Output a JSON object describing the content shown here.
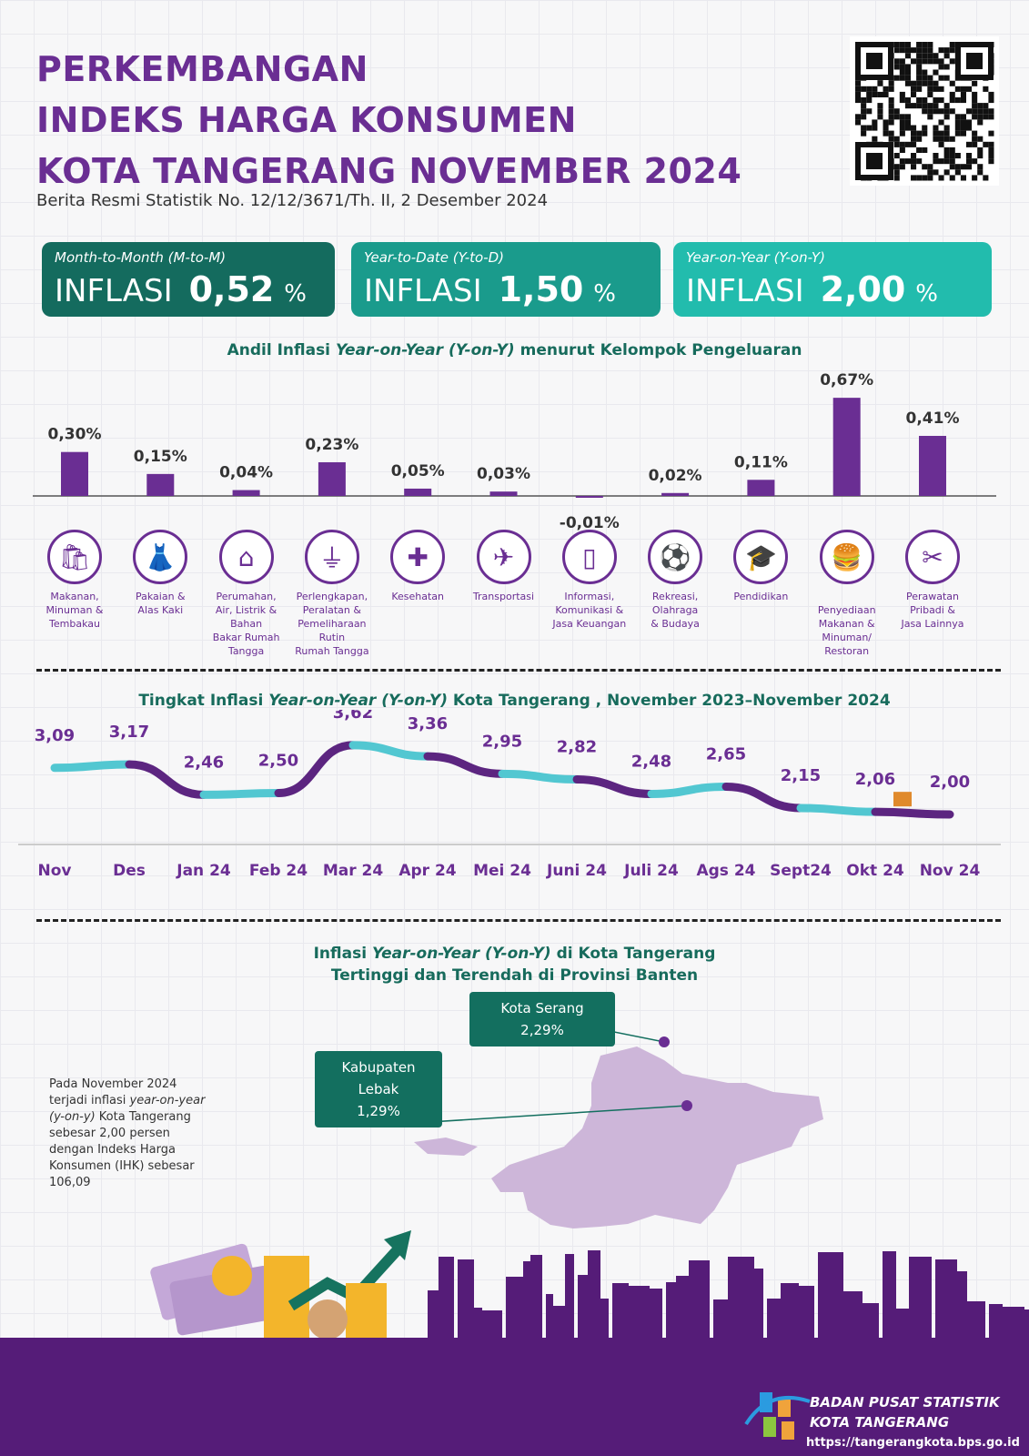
{
  "header": {
    "title_lines": [
      "PERKEMBANGAN",
      "INDEKS HARGA KONSUMEN",
      "KOTA TANGERANG NOVEMBER 2024"
    ],
    "subtitle": "Berita Resmi Statistik No. 12/12/3671/Th. II, 2 Desember 2024"
  },
  "cards": [
    {
      "kind": "Month-to-Month (M-to-M)",
      "label": "INFLASI",
      "value": "0,52",
      "unit": "%",
      "color": "#146b5e"
    },
    {
      "kind": "Year-to-Date (Y-to-D)",
      "label": "INFLASI",
      "value": "1,50",
      "unit": "%",
      "color": "#1a9b8c"
    },
    {
      "kind": "Year-on-Year (Y-on-Y)",
      "label": "INFLASI",
      "value": "2,00",
      "unit": "%",
      "color": "#22bcad"
    }
  ],
  "colors": {
    "purple": "#6a2e93",
    "teal": "#52c7d1",
    "dark_green": "#136f5f",
    "map": "#cdb6d9"
  },
  "chart_data": [
    {
      "type": "bar",
      "title_pre": "Andil Inflasi ",
      "title_em": "Year-on-Year (Y-on-Y)",
      "title_post": " menurut Kelompok Pengeluaran",
      "categories": [
        "Makanan, Minuman & Tembakau",
        "Pakaian & Alas Kaki",
        "Perumahan, Air, Listrik & Bahan Bakar Rumah Tangga",
        "Perlengkapan, Peralatan & Pemeliharaan Rutin Rumah Tangga",
        "Kesehatan",
        "Transportasi",
        "Informasi, Komunikasi & Jasa Keuangan",
        "Rekreasi, Olahraga & Budaya",
        "Pendidikan",
        "Penyediaan Makanan & Minuman/ Restoran",
        "Perawatan Pribadi & Jasa Lainnya"
      ],
      "category_lines": [
        [
          "Makanan,",
          "Minuman &",
          "Tembakau"
        ],
        [
          "Pakaian &",
          "Alas Kaki"
        ],
        [
          "Perumahan,",
          "Air, Listrik &",
          "Bahan",
          "Bakar Rumah",
          "Tangga"
        ],
        [
          "Perlengkapan,",
          "Peralatan &",
          "Pemeliharaan",
          "Rutin",
          "Rumah Tangga"
        ],
        [
          "Kesehatan"
        ],
        [
          "Transportasi"
        ],
        [
          "Informasi,",
          "Komunikasi &",
          "Jasa Keuangan"
        ],
        [
          "Rekreasi,",
          "Olahraga",
          "& Budaya"
        ],
        [
          "Pendidikan"
        ],
        [
          "",
          "Penyediaan",
          "Makanan &",
          "Minuman/",
          "Restoran"
        ],
        [
          "Perawatan",
          "Pribadi &",
          "Jasa Lainnya"
        ]
      ],
      "icons": [
        "grocery-bag-icon",
        "dress-icon",
        "house-icon",
        "plug-icon",
        "medical-kit-icon",
        "airplane-icon",
        "smartphone-icon",
        "football-player-icon",
        "graduation-cap-icon",
        "burger-drink-icon",
        "scissors-comb-icon"
      ],
      "values": [
        0.3,
        0.15,
        0.04,
        0.23,
        0.05,
        0.03,
        -0.01,
        0.02,
        0.11,
        0.67,
        0.41
      ],
      "labels": [
        "0,30%",
        "0,15%",
        "0,04%",
        "0,23%",
        "0,05%",
        "0,03%",
        "-0,01%",
        "0,02%",
        "0,11%",
        "0,67%",
        "0,41%"
      ]
    },
    {
      "type": "line",
      "title_pre": "Tingkat Inflasi ",
      "title_em": "Year-on-Year (Y-on-Y)",
      "title_post": " Kota Tangerang , November 2023–November 2024",
      "categories": [
        "Nov",
        "Des",
        "Jan 24",
        "Feb 24",
        "Mar 24",
        "Apr 24",
        "Mei 24",
        "Juni 24",
        "Juli 24",
        "Ags 24",
        "Sept24",
        "Okt 24",
        "Nov 24"
      ],
      "values": [
        3.09,
        3.17,
        2.46,
        2.5,
        3.62,
        3.36,
        2.95,
        2.82,
        2.48,
        2.65,
        2.15,
        2.06,
        2.0
      ],
      "labels": [
        "3,09",
        "3,17",
        "2,46",
        "2,50",
        "3,62",
        "3,36",
        "2,95",
        "2,82",
        "2,48",
        "2,65",
        "2,15",
        "2,06",
        "2,00"
      ]
    }
  ],
  "map_section": {
    "title_pre": "Inflasi ",
    "title_em": "Year-on-Year (Y-on-Y)",
    "title_post": " di Kota Tangerang",
    "title_line2": "Tertinggi dan Terendah di Provinsi Banten",
    "highest": {
      "name": "Kota Serang",
      "value": "2,29%"
    },
    "lowest": {
      "name1": "Kabupaten",
      "name2": "Lebak",
      "value": "1,29%"
    },
    "note": [
      "Pada November 2024",
      "terjadi inflasi "
    ],
    "note_em": "year-on-year",
    "note2_em": "(y-on-y)",
    "note2": " Kota Tangerang",
    "note_rest": [
      "sebesar 2,00 persen",
      "dengan Indeks Harga",
      "Konsumen (IHK) sebesar",
      "106,09"
    ]
  },
  "footer": {
    "org1": "BADAN PUSAT STATISTIK",
    "org2": "KOTA TANGERANG",
    "url": "https://tangerangkota.bps.go.id"
  }
}
